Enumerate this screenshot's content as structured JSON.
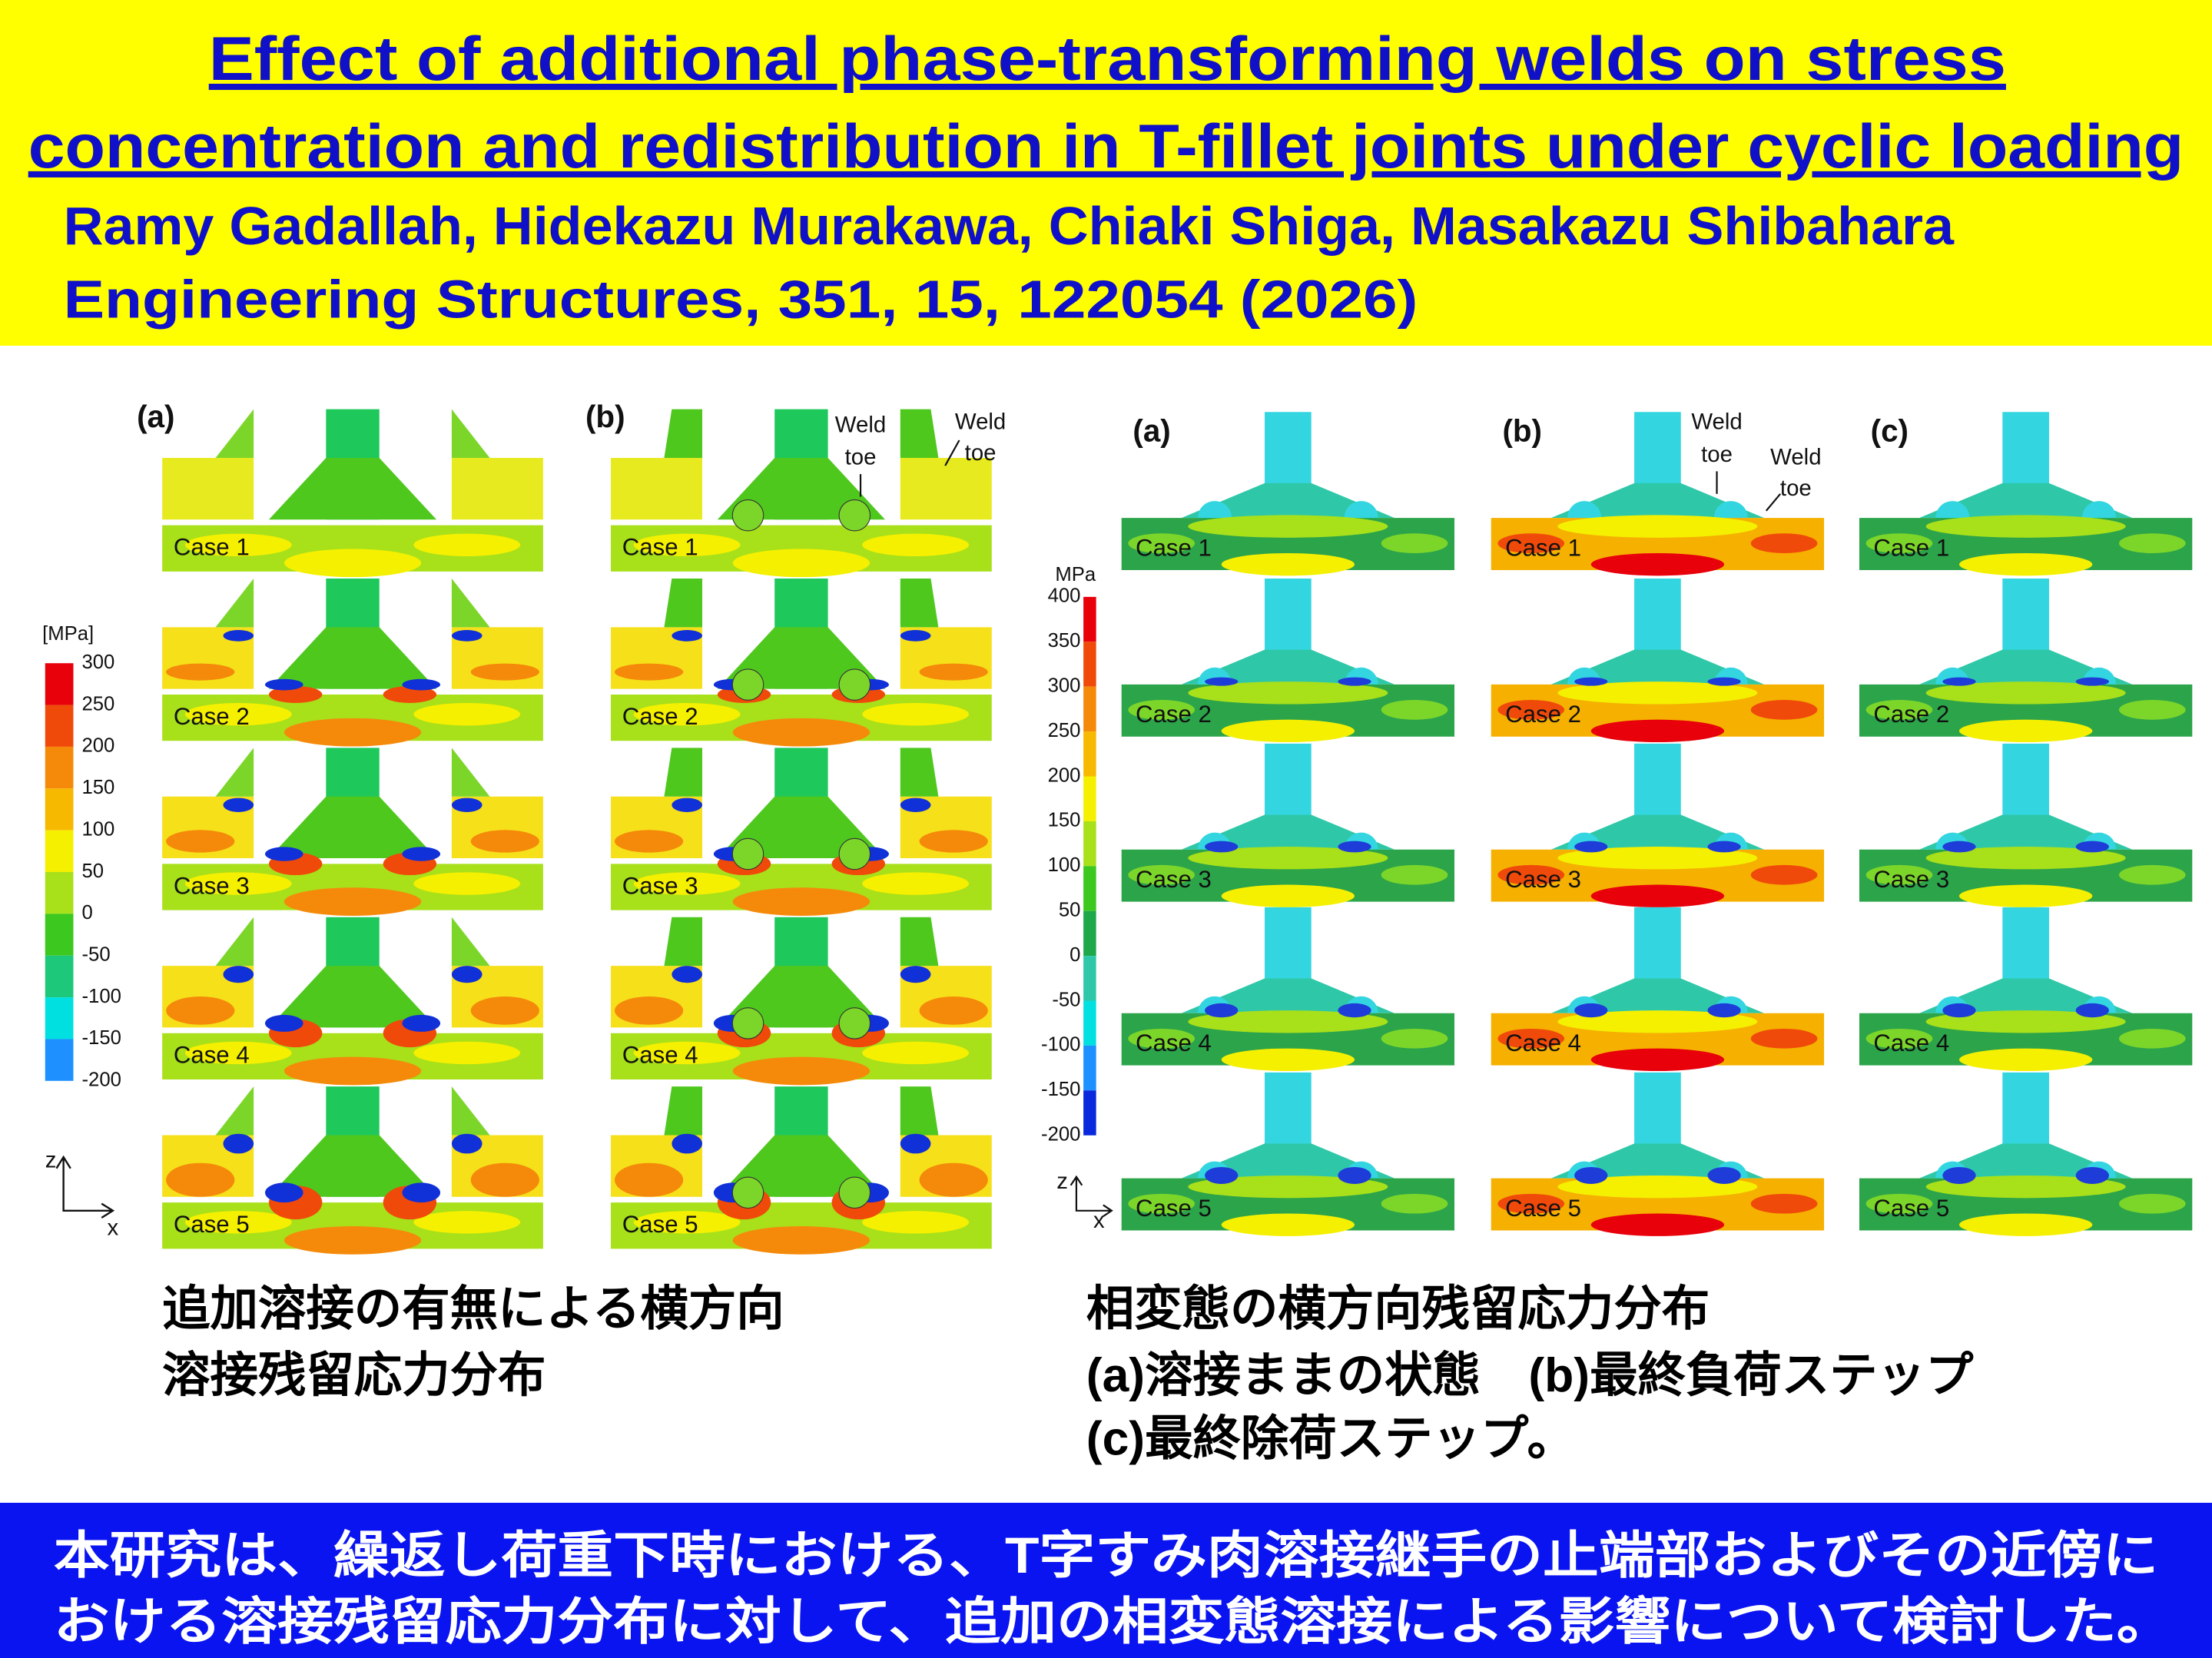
{
  "header": {
    "title_lines": [
      "Effect of additional phase-transforming welds on stress",
      "concentration and redistribution in T-fillet joints under cyclic loading"
    ],
    "authors": "Ramy Gadallah, Hidekazu Murakawa, Chiaki Shiga, Masakazu Shibahara",
    "citation": "Engineering Structures, 351, 15, 122054 (2026)"
  },
  "figure_left": {
    "panels": [
      "(a)",
      "(b)"
    ],
    "weld_toe": [
      "Weld",
      "toe"
    ],
    "cases": [
      "Case 1",
      "Case 2",
      "Case 3",
      "Case 4",
      "Case 5"
    ],
    "colorbar": {
      "unit": "[MPa]",
      "ticks": [
        300,
        250,
        200,
        150,
        100,
        50,
        0,
        -50,
        -100,
        -150,
        -200
      ]
    },
    "axes": [
      "z",
      "x"
    ],
    "caption": [
      "追加溶接の有無による横方向",
      "溶接残留応力分布"
    ]
  },
  "figure_right": {
    "panels": [
      "(a)",
      "(b)",
      "(c)"
    ],
    "weld_toe": [
      "Weld",
      "toe"
    ],
    "cases": [
      "Case 1",
      "Case 2",
      "Case 3",
      "Case 4",
      "Case 5"
    ],
    "colorbar": {
      "unit": "MPa",
      "ticks": [
        400,
        350,
        300,
        250,
        200,
        150,
        100,
        50,
        0,
        -50,
        -100,
        -150,
        -200
      ]
    },
    "axes": [
      "z",
      "x"
    ],
    "caption": [
      "相変態の横方向残留応力分布",
      "(a)溶接ままの状態　(b)最終負荷ステップ",
      "(c)最終除荷ステップ。"
    ]
  },
  "footer": [
    "本研究は、繰返し荷重下時における、T字すみ肉溶接継手の止端部およびその近傍に",
    "おける溶接残留応力分布に対して、追加の相変態溶接による影響について検討した。"
  ]
}
